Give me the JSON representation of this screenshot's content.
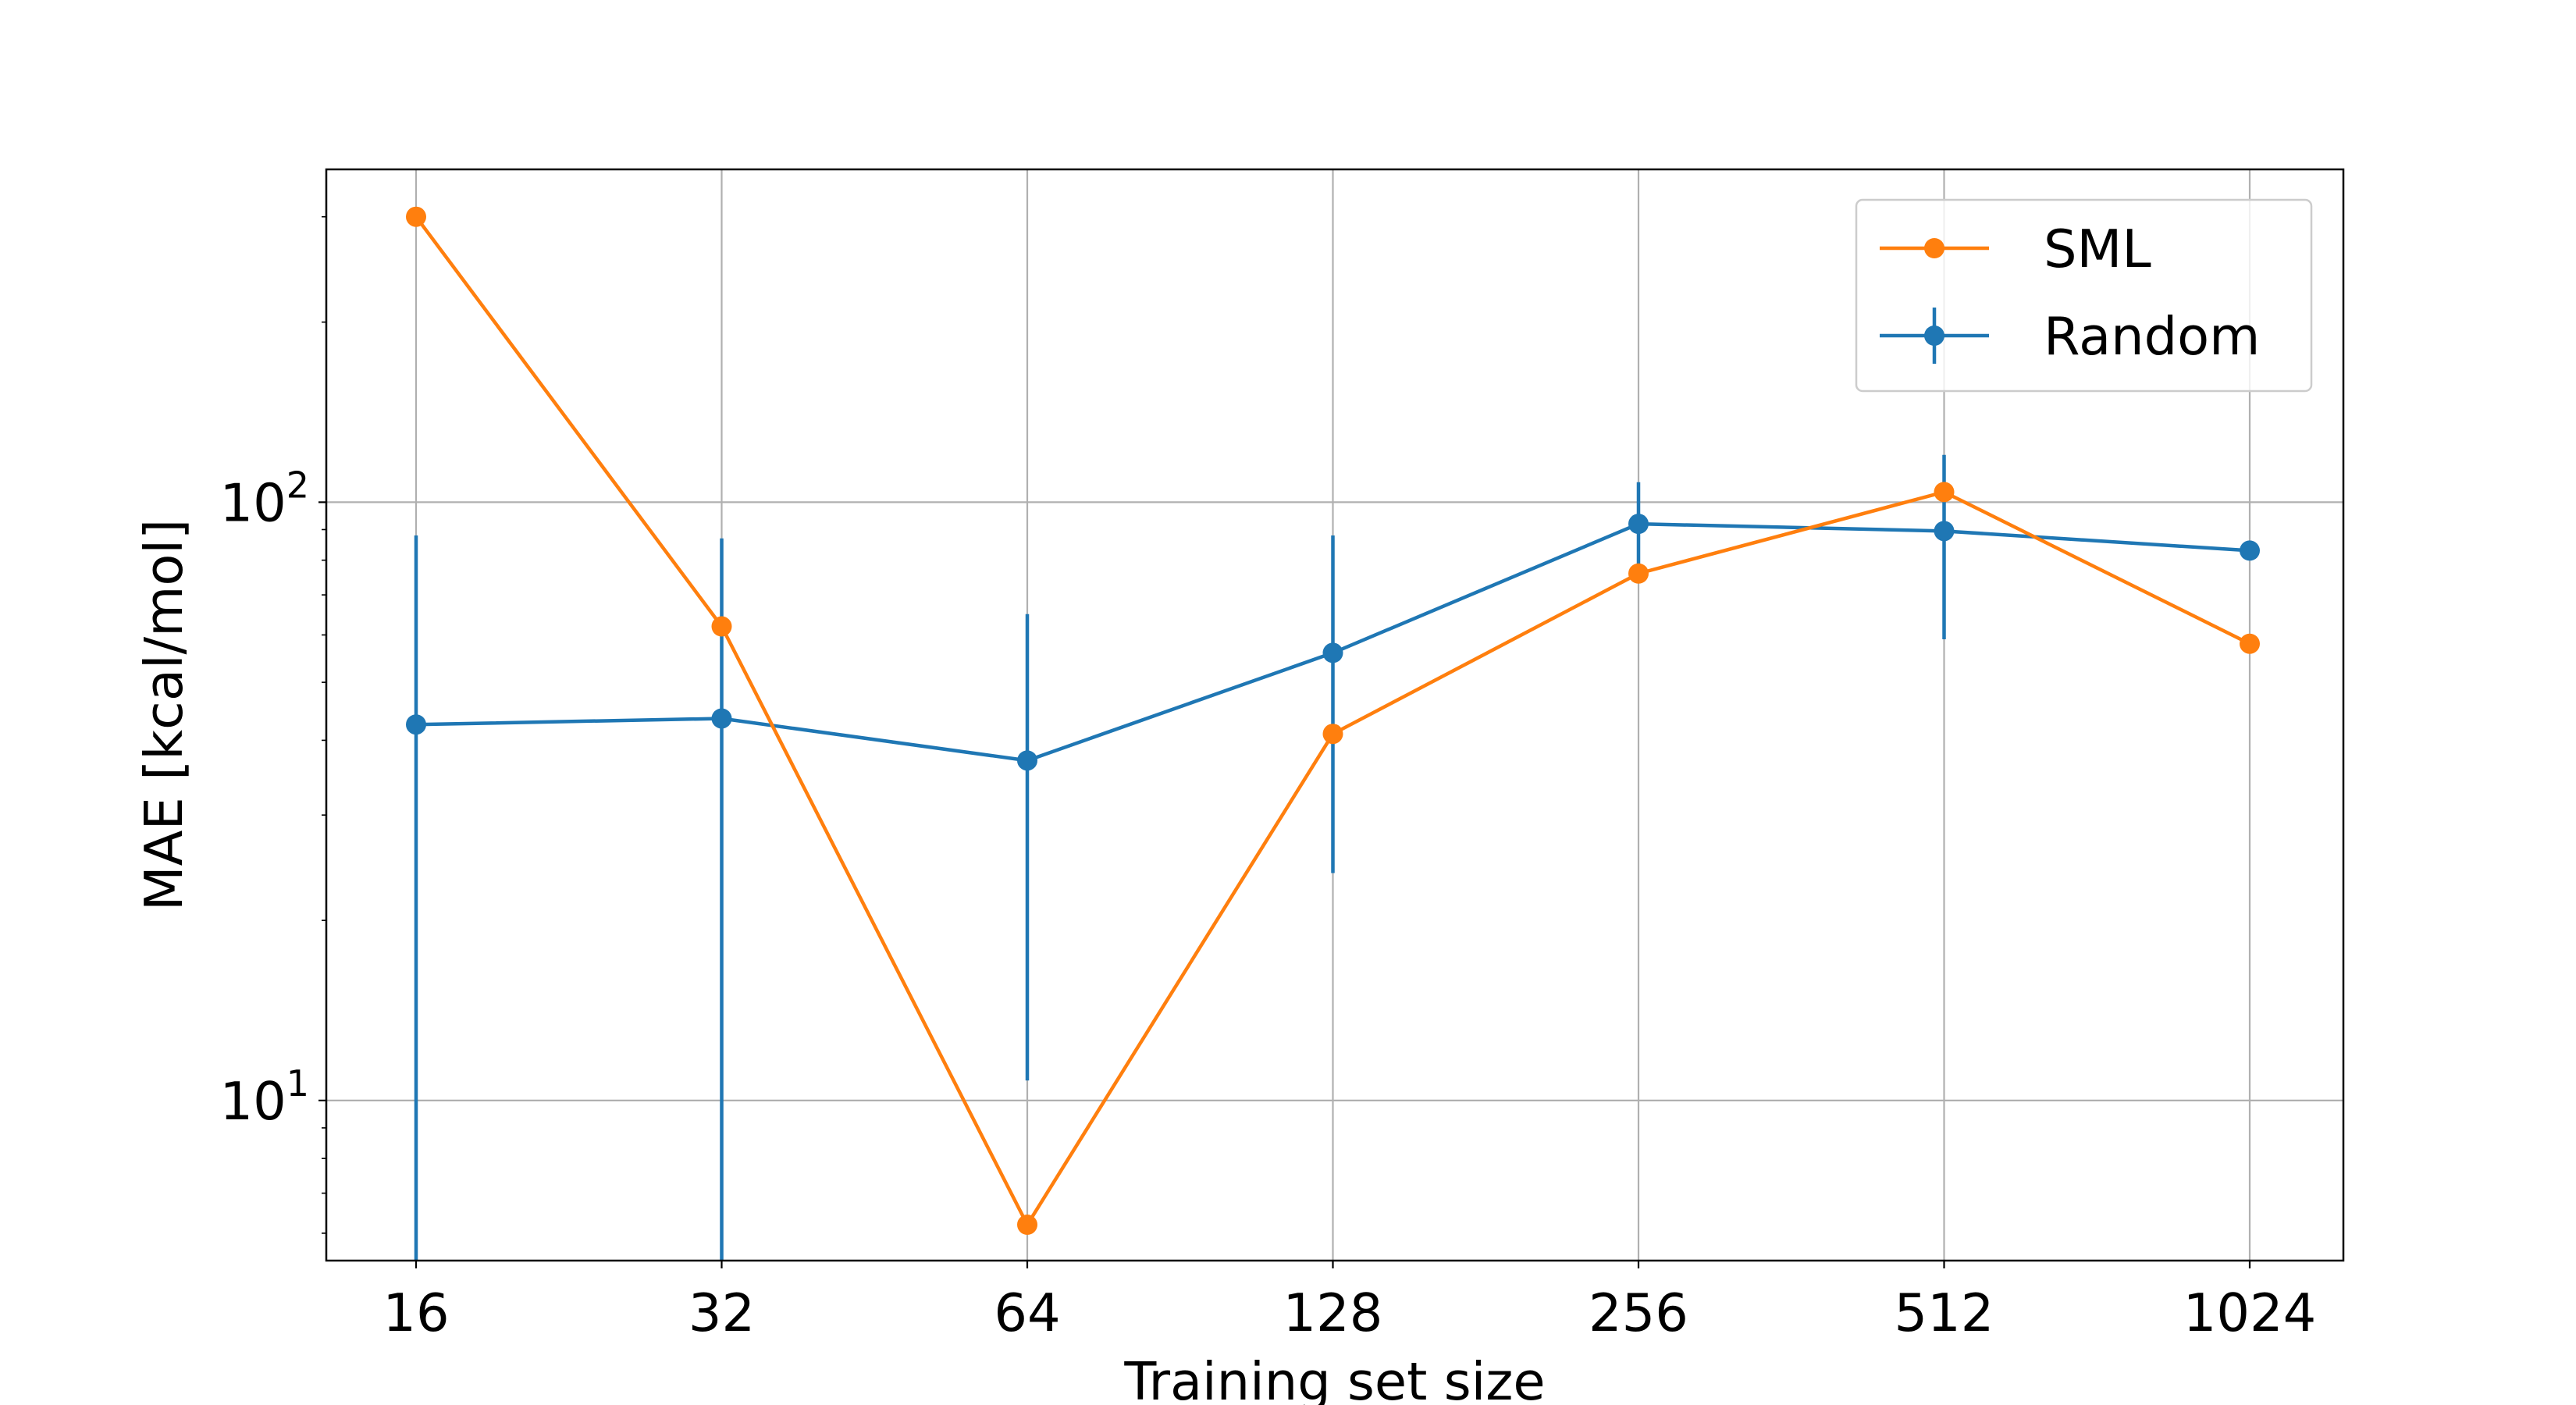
{
  "chart_data": {
    "type": "line",
    "xlabel": "Training set size",
    "ylabel": "MAE [kcal/mol]",
    "x_scale": "log2",
    "y_scale": "log10",
    "x": [
      16,
      32,
      64,
      128,
      256,
      512,
      1024
    ],
    "x_tick_labels": [
      "16",
      "32",
      "64",
      "128",
      "256",
      "512",
      "1024"
    ],
    "y_ticks": [
      {
        "value": 10,
        "base": "10",
        "exp": "1"
      },
      {
        "value": 100,
        "base": "10",
        "exp": "2"
      }
    ],
    "ylim": [
      5.4,
      360
    ],
    "grid": true,
    "legend_position": "top-right",
    "series": [
      {
        "name": "SML",
        "color": "#ff7f0e",
        "marker": "circle",
        "values": [
          300,
          62,
          6.2,
          41,
          76,
          104,
          58
        ]
      },
      {
        "name": "Random",
        "color": "#1f77b4",
        "marker": "circle",
        "error_bars": true,
        "values": [
          42.5,
          43.5,
          37,
          56,
          92,
          89.5,
          83
        ],
        "err_low": [
          1,
          1,
          10.8,
          24,
          75,
          59,
          83
        ],
        "err_high": [
          88,
          87,
          65,
          88,
          108,
          120,
          83
        ]
      }
    ]
  }
}
